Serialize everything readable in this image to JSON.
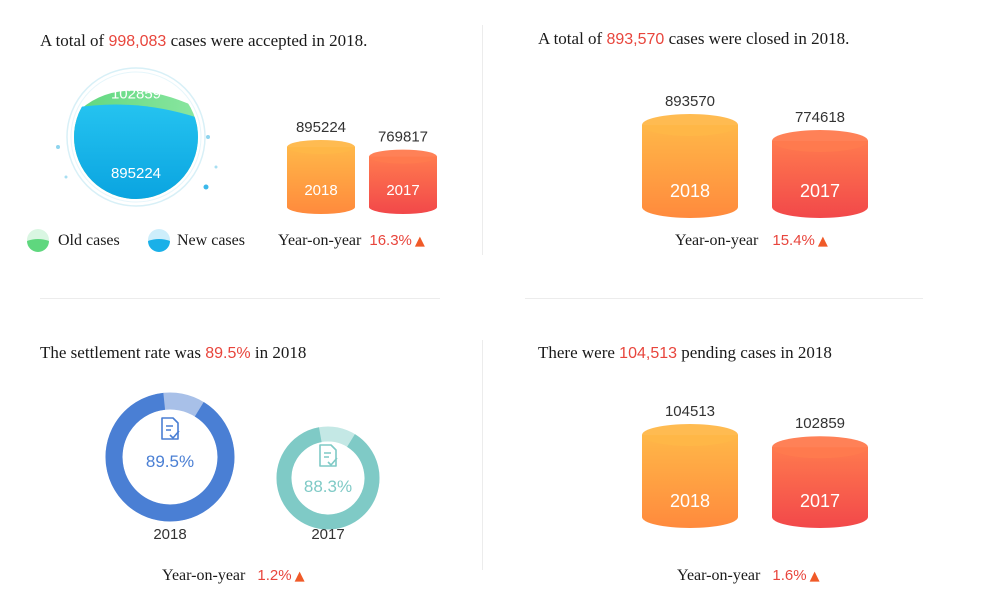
{
  "colors": {
    "highlight": "#e8453c",
    "bar_2018_top": "#ffb748",
    "bar_2018_bottom": "#ff8a3d",
    "bar_2017_top": "#ff7a4e",
    "bar_2017_bottom": "#f2484a",
    "ring_2018": "#4a7fd4",
    "ring_2017": "#7fcac6",
    "old_cases": "#6edb8a",
    "new_cases": "#1ab0e8"
  },
  "panels": {
    "accepted": {
      "headline_pre": "A total of",
      "headline_value": "998,083",
      "headline_post": "cases were accepted in 2018.",
      "yoy_label": "Year-on-year",
      "yoy_value": "16.3%"
    },
    "closed": {
      "headline_pre": "A total of",
      "headline_value": "893,570",
      "headline_post": "cases were closed in 2018.",
      "yoy_label": "Year-on-year",
      "yoy_value": "15.4%"
    },
    "settlement": {
      "headline_pre": "The settlement rate was",
      "headline_value": "89.5%",
      "headline_post": "in 2018",
      "yoy_label": "Year-on-year",
      "yoy_value": "1.2%"
    },
    "pending": {
      "headline_pre": "There were",
      "headline_value": "104,513",
      "headline_post": "pending cases in 2018",
      "yoy_label": "Year-on-year",
      "yoy_value": "1.6%"
    }
  },
  "chart_data": [
    {
      "id": "accepted-composition",
      "type": "pie",
      "series": [
        {
          "name": "Old cases",
          "value": 102859,
          "label": "102859"
        },
        {
          "name": "New cases",
          "value": 895224,
          "label": "895224"
        }
      ]
    },
    {
      "id": "accepted",
      "type": "bar",
      "categories": [
        "2018",
        "2017"
      ],
      "values": [
        895224,
        769817
      ],
      "value_labels": [
        "895224",
        "769817"
      ]
    },
    {
      "id": "closed",
      "type": "bar",
      "categories": [
        "2018",
        "2017"
      ],
      "values": [
        893570,
        774618
      ],
      "value_labels": [
        "893570",
        "774618"
      ]
    },
    {
      "id": "settlement",
      "type": "pie",
      "categories": [
        "2018",
        "2017"
      ],
      "values": [
        89.5,
        88.3
      ],
      "value_labels": [
        "89.5%",
        "88.3%"
      ]
    },
    {
      "id": "pending",
      "type": "bar",
      "categories": [
        "2018",
        "2017"
      ],
      "values": [
        104513,
        102859
      ],
      "value_labels": [
        "104513",
        "102859"
      ]
    }
  ]
}
